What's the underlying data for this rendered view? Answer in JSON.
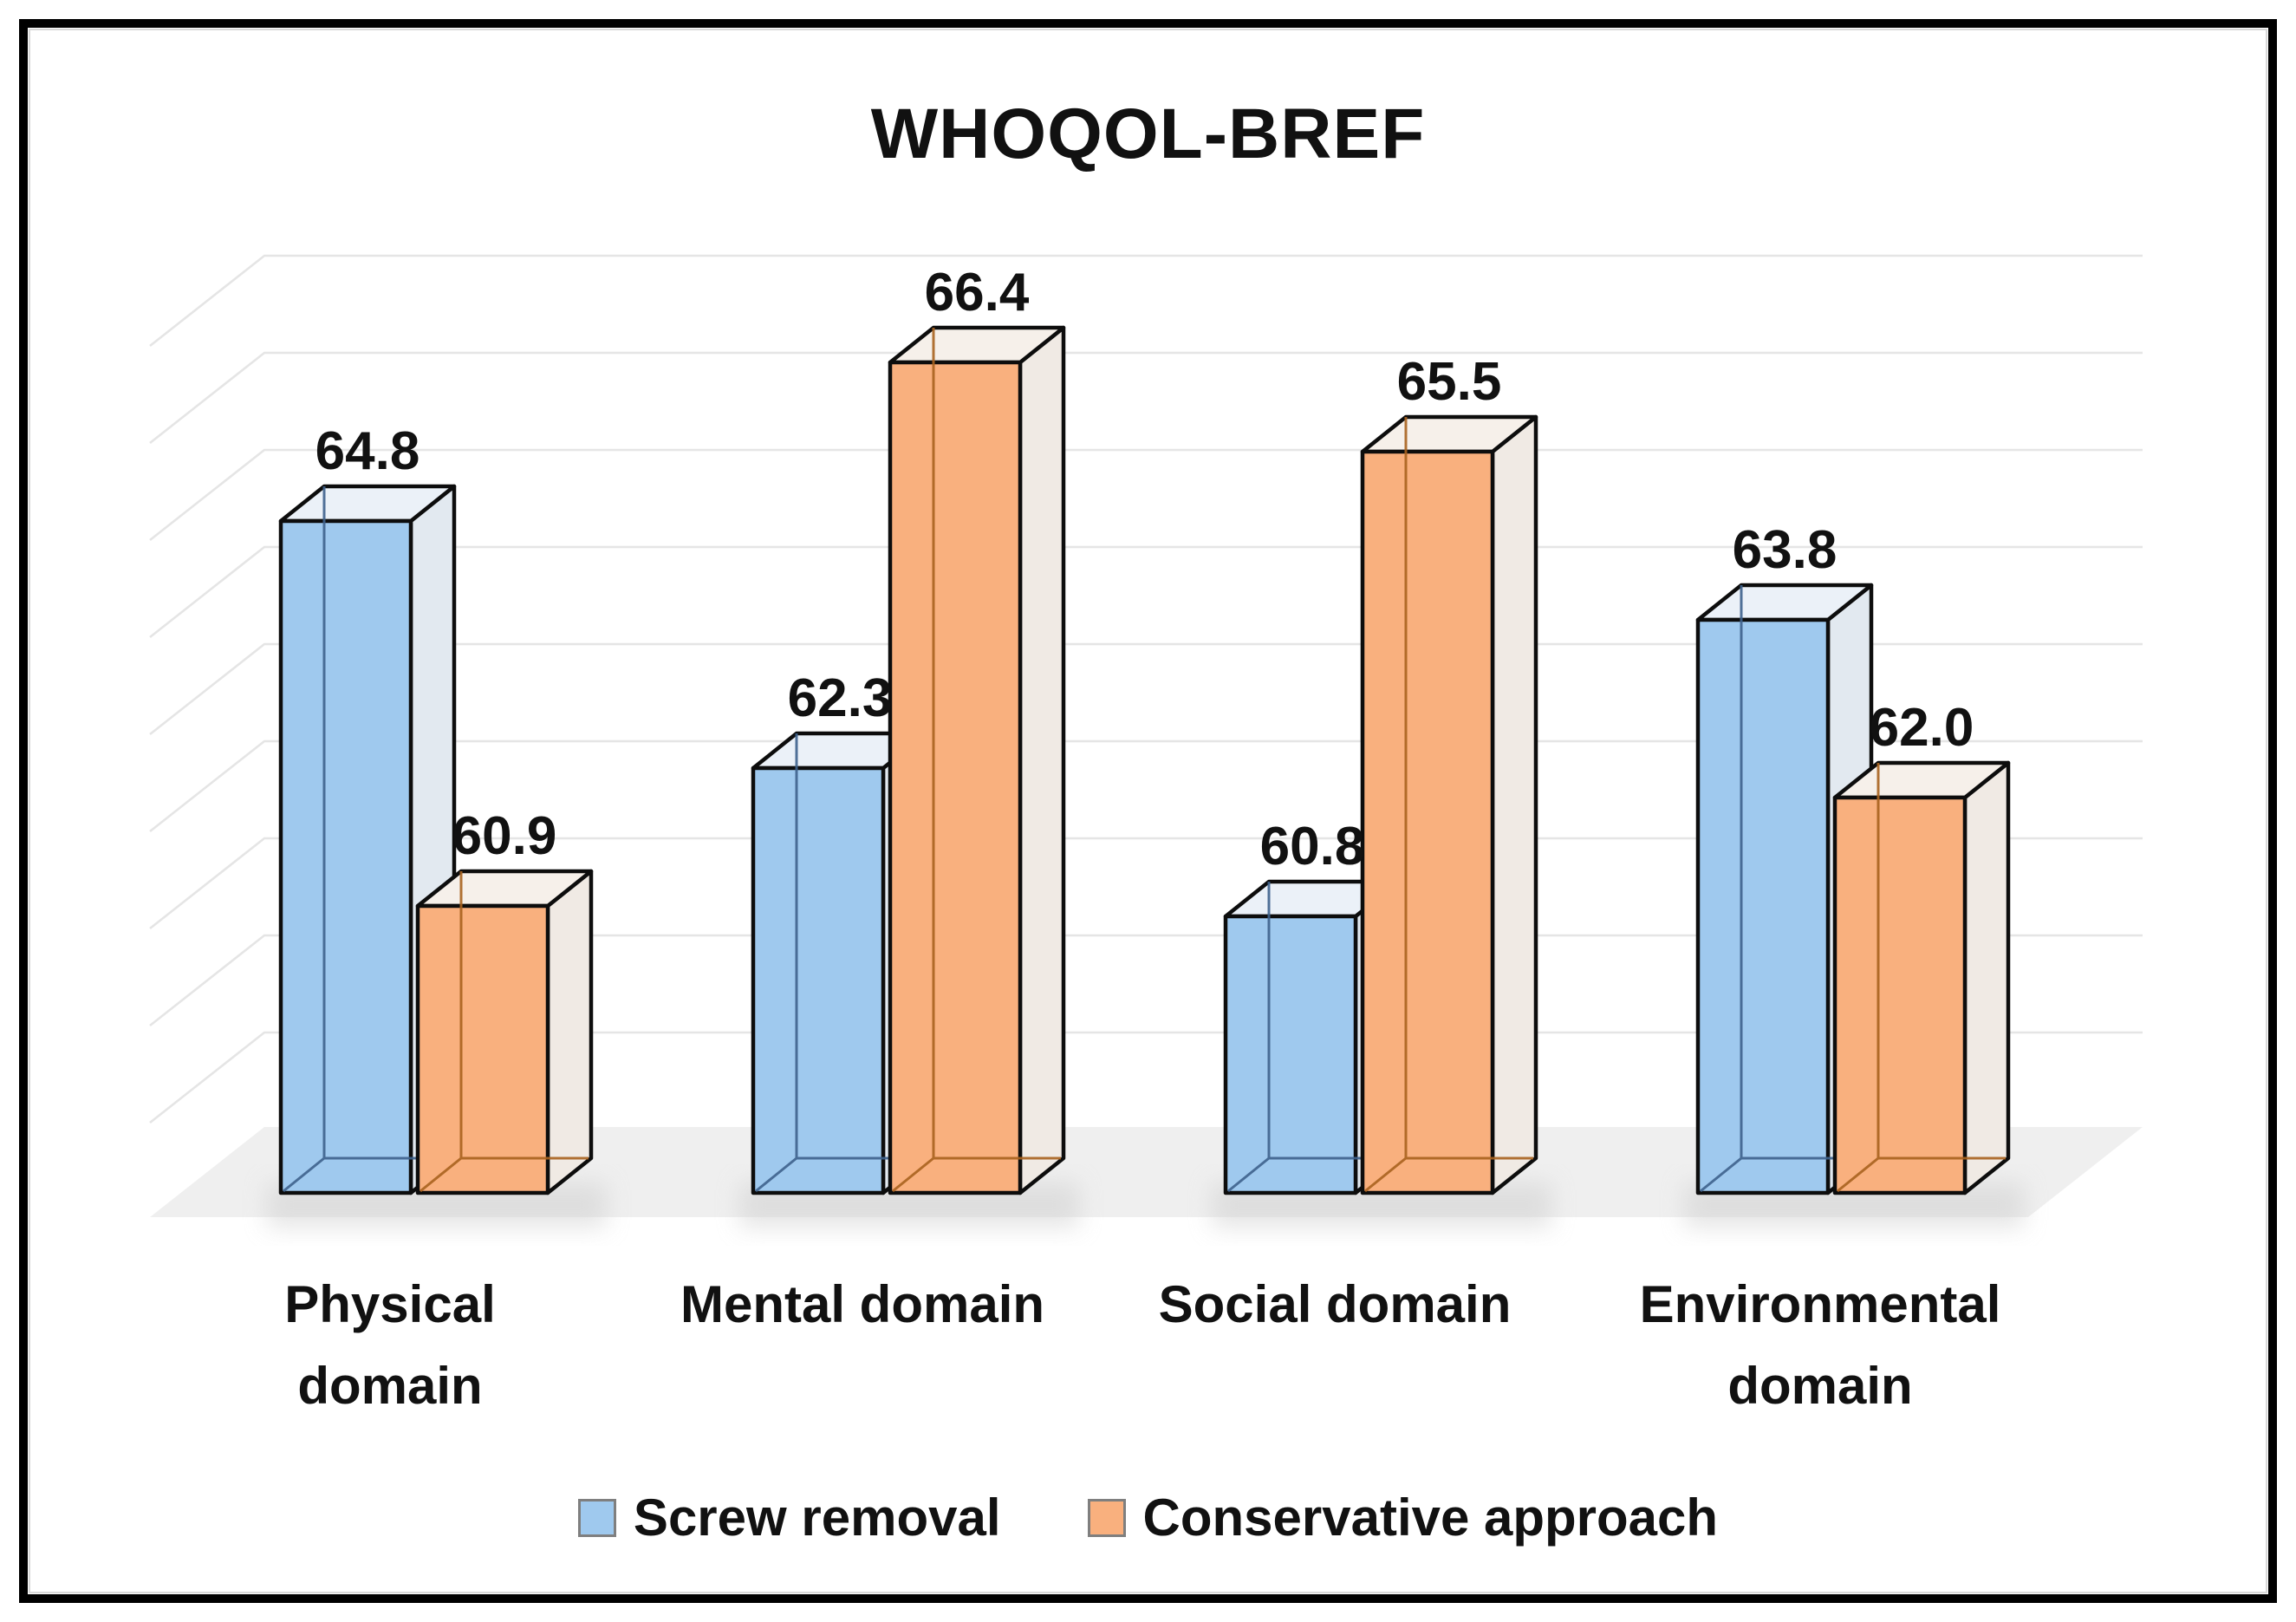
{
  "chart_data": {
    "type": "bar",
    "projection": "3d",
    "title": "WHOQOL-BREF",
    "categories": [
      "Physical domain",
      "Mental domain",
      "Social domain",
      "Environmental domain"
    ],
    "category_label_lines": [
      {
        "line1": "Physical",
        "line2": "domain"
      },
      {
        "line1": "Mental domain",
        "line2": ""
      },
      {
        "line1": "Social domain",
        "line2": ""
      },
      {
        "line1": "Environmental",
        "line2": "domain"
      }
    ],
    "series": [
      {
        "name": "Screw removal",
        "values": [
          64.8,
          62.3,
          60.8,
          63.8
        ],
        "color": "#9FC9EE",
        "side_color": "#E2E9F0",
        "top_color": "#EBF1F8",
        "hidden_edge_color": "#3E628C"
      },
      {
        "name": "Conservative approach",
        "values": [
          60.9,
          66.4,
          65.5,
          62.0
        ],
        "color": "#F9B07E",
        "side_color": "#F0EAE4",
        "top_color": "#F6F0EA",
        "hidden_edge_color": "#A9631F"
      }
    ],
    "value_label_decimals": 1,
    "value_labels_visible": true,
    "value_axis": {
      "baseline": 58,
      "gridline_interval": 1,
      "tick_labels_visible": false,
      "ylim": [
        58,
        67.5
      ]
    },
    "grid": true,
    "legend_position": "bottom",
    "colors": {
      "outline": "#0d0d0d",
      "gridline": "#e5e5e5",
      "floor": "#efefef",
      "shadow": "#d0d0d0",
      "text": "#111111",
      "legend_swatch_border": "#7f7f7f"
    }
  }
}
